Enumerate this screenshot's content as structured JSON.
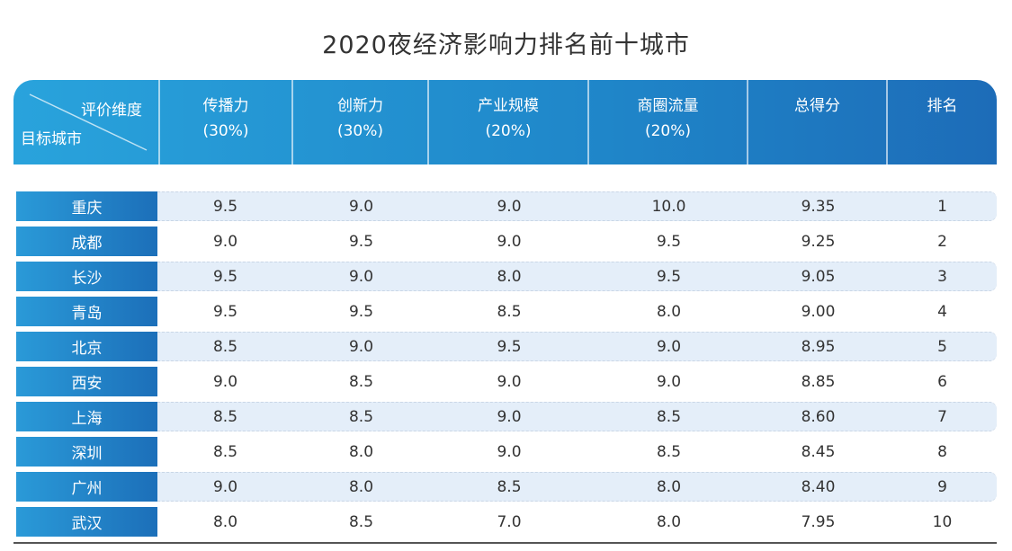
{
  "chart_data": {
    "type": "table",
    "title": "2020夜经济影响力排名前十城市",
    "corner": {
      "top_label": "评价维度",
      "bottom_label": "目标城市"
    },
    "columns": [
      {
        "name": "传播力",
        "weight": "(30%)"
      },
      {
        "name": "创新力",
        "weight": "(30%)"
      },
      {
        "name": "产业规模",
        "weight": "(20%)"
      },
      {
        "name": "商圈流量",
        "weight": "(20%)"
      },
      {
        "name": "总得分",
        "weight": ""
      },
      {
        "name": "排名",
        "weight": ""
      }
    ],
    "rows": [
      {
        "city": "重庆",
        "values": [
          "9.5",
          "9.0",
          "9.0",
          "10.0",
          "9.35",
          "1"
        ]
      },
      {
        "city": "成都",
        "values": [
          "9.0",
          "9.5",
          "9.0",
          "9.5",
          "9.25",
          "2"
        ]
      },
      {
        "city": "长沙",
        "values": [
          "9.5",
          "9.0",
          "8.0",
          "9.5",
          "9.05",
          "3"
        ]
      },
      {
        "city": "青岛",
        "values": [
          "9.5",
          "9.5",
          "8.5",
          "8.0",
          "9.00",
          "4"
        ]
      },
      {
        "city": "北京",
        "values": [
          "8.5",
          "9.0",
          "9.5",
          "9.0",
          "8.95",
          "5"
        ]
      },
      {
        "city": "西安",
        "values": [
          "9.0",
          "8.5",
          "9.0",
          "9.0",
          "8.85",
          "6"
        ]
      },
      {
        "city": "上海",
        "values": [
          "8.5",
          "8.5",
          "9.0",
          "8.5",
          "8.60",
          "7"
        ]
      },
      {
        "city": "深圳",
        "values": [
          "8.5",
          "8.0",
          "9.0",
          "8.5",
          "8.45",
          "8"
        ]
      },
      {
        "city": "广州",
        "values": [
          "9.0",
          "8.0",
          "8.5",
          "8.0",
          "8.40",
          "9"
        ]
      },
      {
        "city": "武汉",
        "values": [
          "8.0",
          "8.5",
          "7.0",
          "8.0",
          "7.95",
          "10"
        ]
      }
    ],
    "colors": {
      "header": "#1f86c9",
      "row_alt": "#e4eef9"
    }
  }
}
